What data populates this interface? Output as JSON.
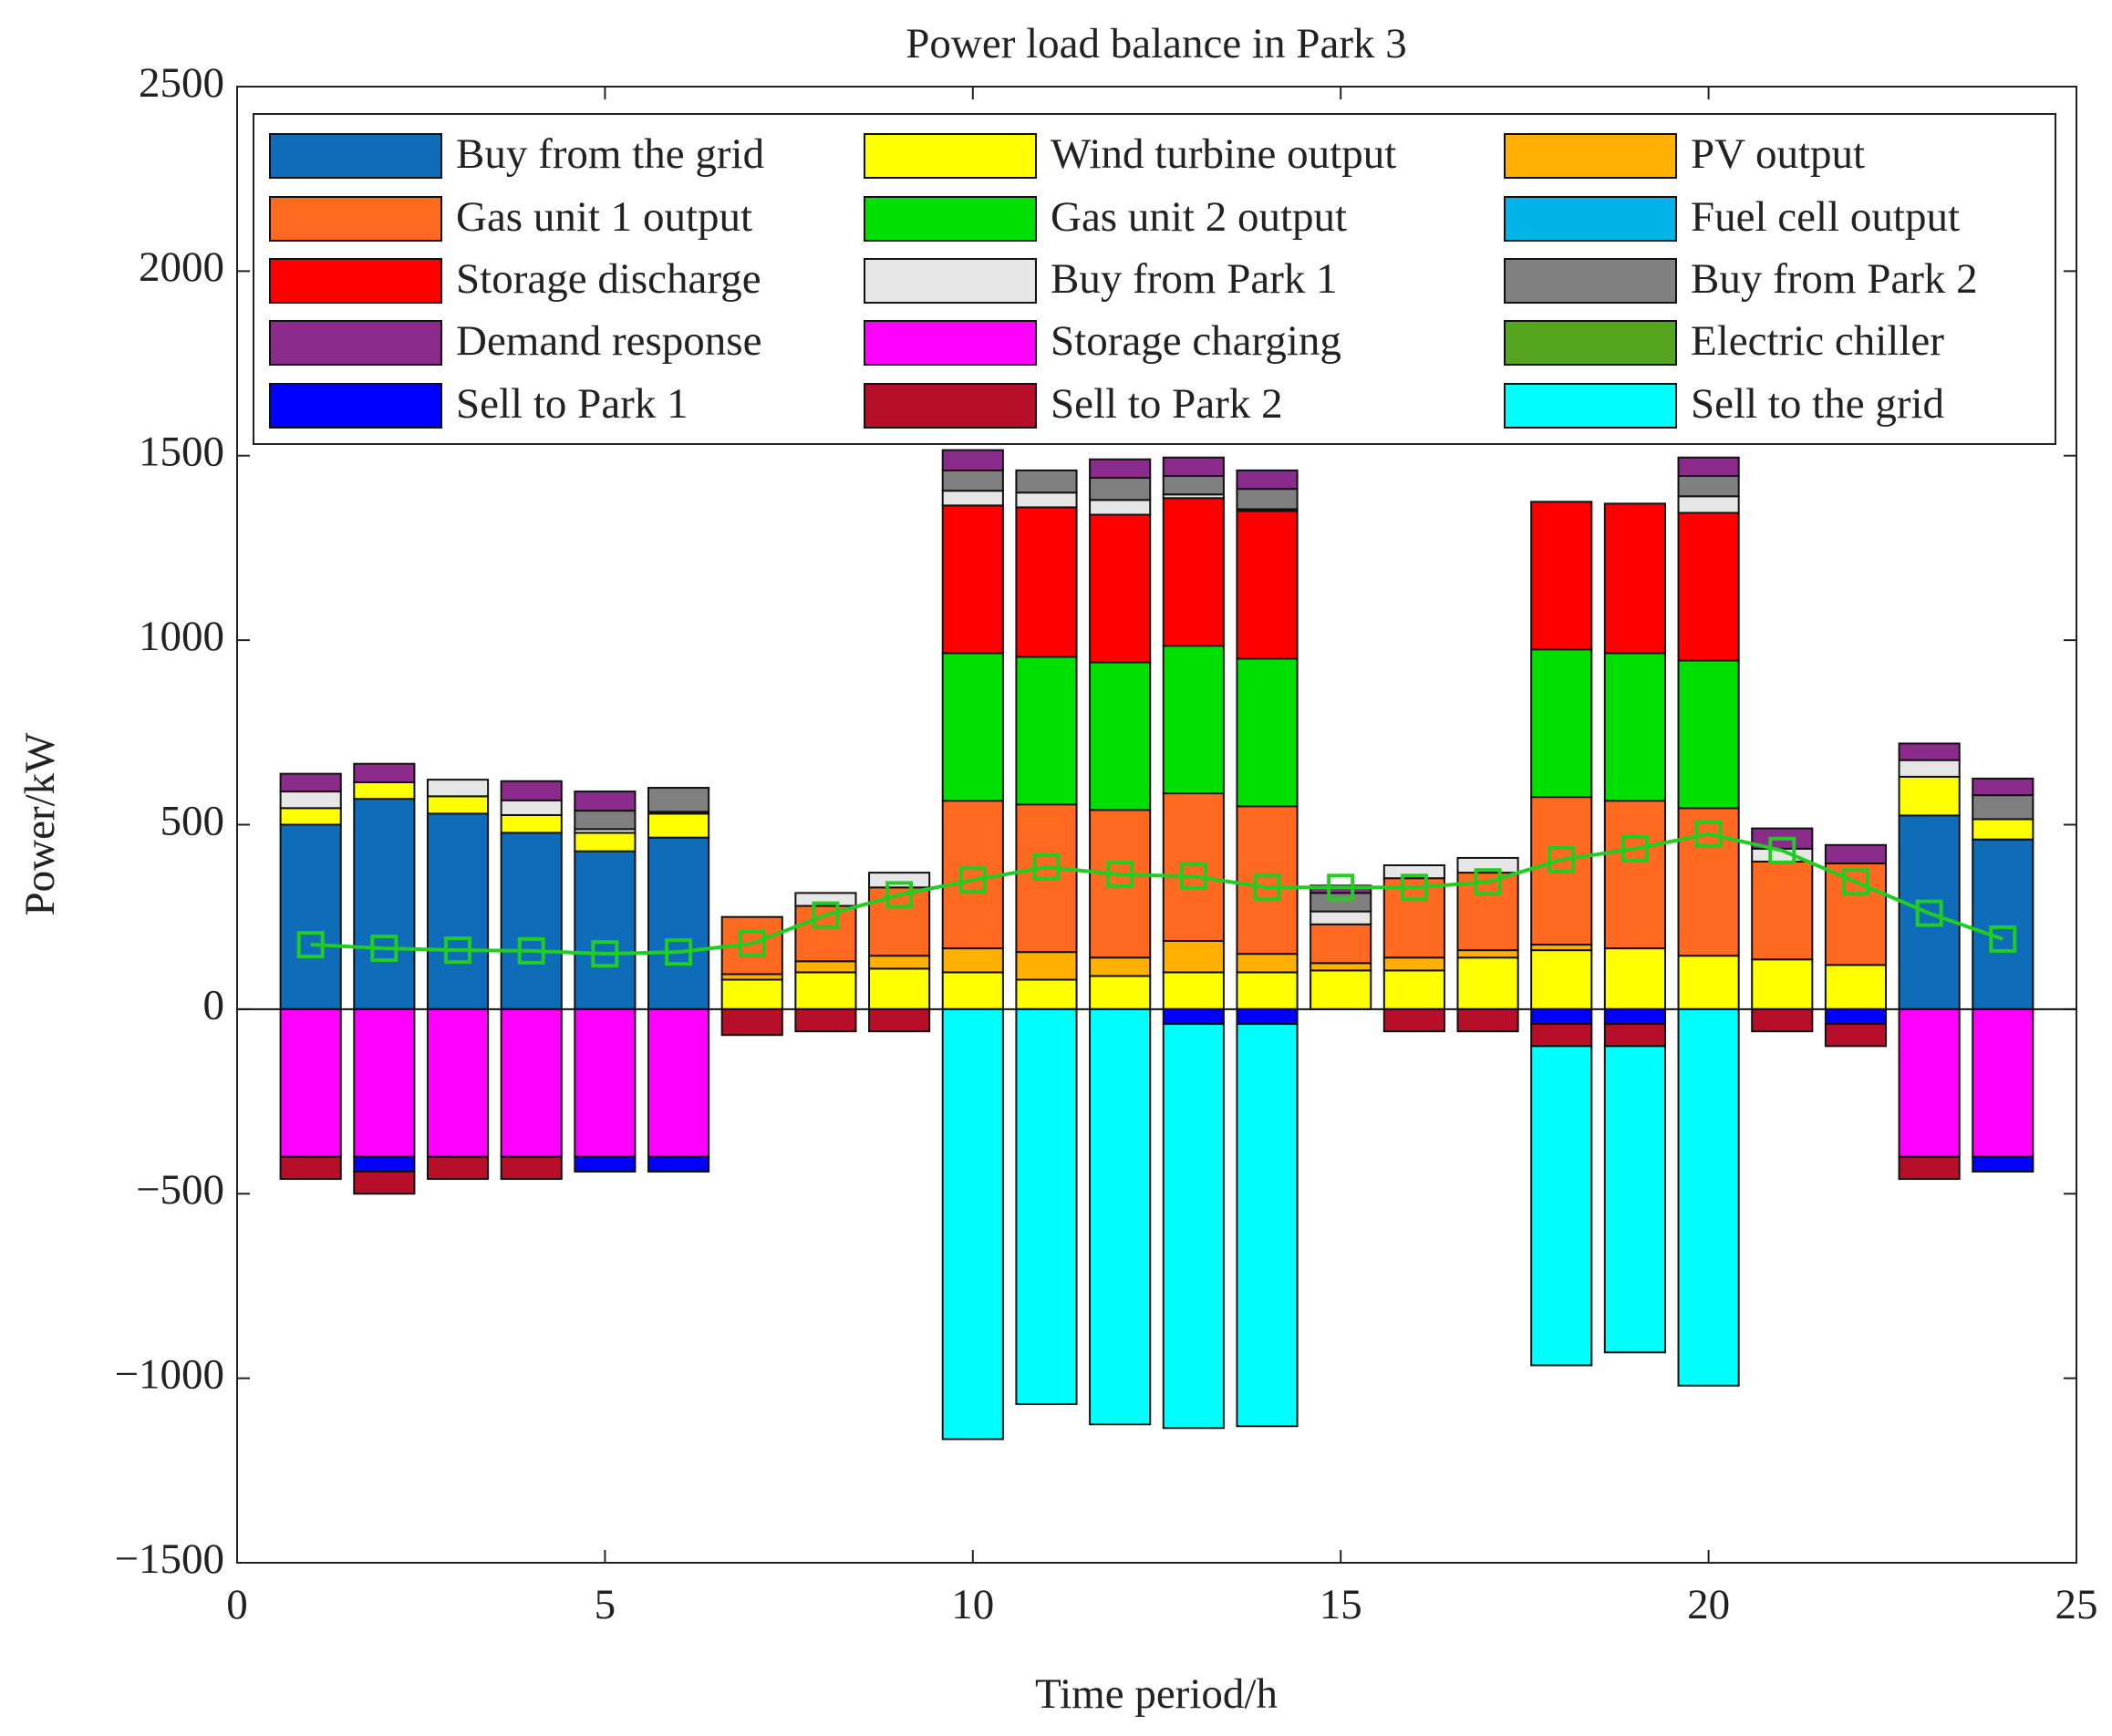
{
  "chart_data": {
    "type": "bar",
    "stacked": true,
    "title": "Power load balance in Park 3",
    "xlabel": "Time period/h",
    "ylabel": "Power/kW",
    "x": [
      1,
      2,
      3,
      4,
      5,
      6,
      7,
      8,
      9,
      10,
      11,
      12,
      13,
      14,
      15,
      16,
      17,
      18,
      19,
      20,
      21,
      22,
      23,
      24
    ],
    "xlim": [
      0,
      25
    ],
    "xticks": [
      0,
      5,
      10,
      15,
      20,
      25
    ],
    "ylim": [
      -1500,
      2500
    ],
    "yticks": [
      {
        "value": -1500,
        "label": "−1500"
      },
      {
        "value": -1000,
        "label": "−1000"
      },
      {
        "value": -500,
        "label": "−500"
      },
      0,
      500,
      1000,
      1500,
      2000,
      2500
    ],
    "legend": "top",
    "series": [
      {
        "name": "Buy from the grid",
        "color": "#0f6cb8",
        "values": [
          500,
          570,
          530,
          478,
          428,
          465,
          0,
          0,
          0,
          0,
          0,
          0,
          0,
          0,
          0,
          0,
          0,
          0,
          0,
          0,
          0,
          0,
          525,
          460
        ]
      },
      {
        "name": "Wind turbine output",
        "color": "#ffff00",
        "values": [
          45,
          45,
          47,
          48,
          50,
          65,
          80,
          100,
          110,
          100,
          80,
          90,
          100,
          100,
          105,
          105,
          140,
          160,
          165,
          145,
          135,
          120,
          105,
          55
        ]
      },
      {
        "name": "PV output",
        "color": "#ffb000",
        "values": [
          0,
          0,
          0,
          0,
          0,
          0,
          15,
          30,
          35,
          65,
          75,
          50,
          85,
          50,
          20,
          35,
          20,
          15,
          0,
          0,
          0,
          0,
          0,
          0
        ]
      },
      {
        "name": "Gas unit 1 output",
        "color": "#ff6a20",
        "values": [
          0,
          0,
          0,
          0,
          0,
          0,
          155,
          150,
          185,
          400,
          400,
          400,
          400,
          400,
          105,
          215,
          210,
          400,
          400,
          400,
          265,
          275,
          0,
          0
        ]
      },
      {
        "name": "Gas unit 2 output",
        "color": "#00e000",
        "values": [
          0,
          0,
          0,
          0,
          0,
          0,
          0,
          0,
          0,
          400,
          400,
          400,
          400,
          400,
          0,
          0,
          0,
          400,
          400,
          400,
          0,
          0,
          0,
          0
        ]
      },
      {
        "name": "Fuel cell output",
        "color": "#00b4e8",
        "values": [
          0,
          0,
          0,
          0,
          0,
          0,
          0,
          0,
          0,
          0,
          0,
          0,
          0,
          0,
          0,
          0,
          0,
          0,
          0,
          0,
          0,
          0,
          0,
          0
        ]
      },
      {
        "name": "Storage discharge",
        "color": "#ff0000",
        "values": [
          0,
          0,
          0,
          0,
          0,
          0,
          0,
          0,
          0,
          400,
          405,
          400,
          400,
          400,
          0,
          0,
          0,
          400,
          405,
          400,
          0,
          0,
          0,
          0
        ]
      },
      {
        "name": "Buy from Park 1",
        "color": "#e6e6e6",
        "values": [
          45,
          0,
          45,
          40,
          10,
          5,
          0,
          35,
          40,
          40,
          40,
          40,
          10,
          5,
          35,
          35,
          40,
          0,
          0,
          45,
          35,
          0,
          45,
          0
        ]
      },
      {
        "name": "Buy from Park 2",
        "color": "#808080",
        "values": [
          0,
          0,
          0,
          0,
          50,
          65,
          0,
          0,
          0,
          55,
          60,
          60,
          50,
          55,
          50,
          0,
          0,
          0,
          0,
          55,
          0,
          0,
          0,
          65
        ]
      },
      {
        "name": "Demand response",
        "color": "#8b2b8b",
        "values": [
          48,
          50,
          0,
          52,
          52,
          0,
          0,
          0,
          0,
          55,
          0,
          50,
          50,
          50,
          20,
          0,
          0,
          0,
          0,
          50,
          55,
          50,
          45,
          45
        ]
      },
      {
        "name": "Storage charging",
        "color": "#ff00ff",
        "values": [
          -400,
          -400,
          -400,
          -400,
          -400,
          -400,
          0,
          0,
          0,
          0,
          0,
          0,
          0,
          0,
          0,
          0,
          0,
          0,
          0,
          0,
          0,
          0,
          -400,
          -400
        ]
      },
      {
        "name": "Electric chiller",
        "color": "#55a51f",
        "values": [
          0,
          0,
          0,
          0,
          0,
          0,
          0,
          0,
          0,
          0,
          0,
          0,
          0,
          0,
          0,
          0,
          0,
          0,
          0,
          0,
          0,
          0,
          0,
          0
        ]
      },
      {
        "name": "Sell to Park 1",
        "color": "#0000ff",
        "values": [
          0,
          -40,
          0,
          0,
          -40,
          -40,
          0,
          0,
          0,
          0,
          0,
          0,
          -40,
          -40,
          0,
          0,
          0,
          -40,
          -40,
          0,
          0,
          -40,
          0,
          -40
        ]
      },
      {
        "name": "Sell to Park 2",
        "color": "#b70f2a",
        "values": [
          -60,
          -60,
          -60,
          -60,
          0,
          0,
          -70,
          -60,
          -60,
          0,
          0,
          0,
          0,
          0,
          0,
          -60,
          -60,
          -60,
          -60,
          0,
          -60,
          -60,
          -60,
          0
        ]
      },
      {
        "name": "Sell to the grid",
        "color": "#00ffff",
        "values": [
          0,
          0,
          0,
          0,
          0,
          0,
          0,
          0,
          0,
          -1165,
          -1070,
          -1125,
          -1095,
          -1090,
          0,
          0,
          0,
          -865,
          -830,
          -1020,
          0,
          0,
          0,
          0
        ]
      },
      {
        "type": "line",
        "color": "#22cc22",
        "values": [
          175,
          165,
          160,
          158,
          150,
          155,
          178,
          255,
          310,
          350,
          385,
          365,
          360,
          330,
          330,
          330,
          345,
          405,
          435,
          475,
          430,
          345,
          260,
          190
        ]
      }
    ]
  }
}
